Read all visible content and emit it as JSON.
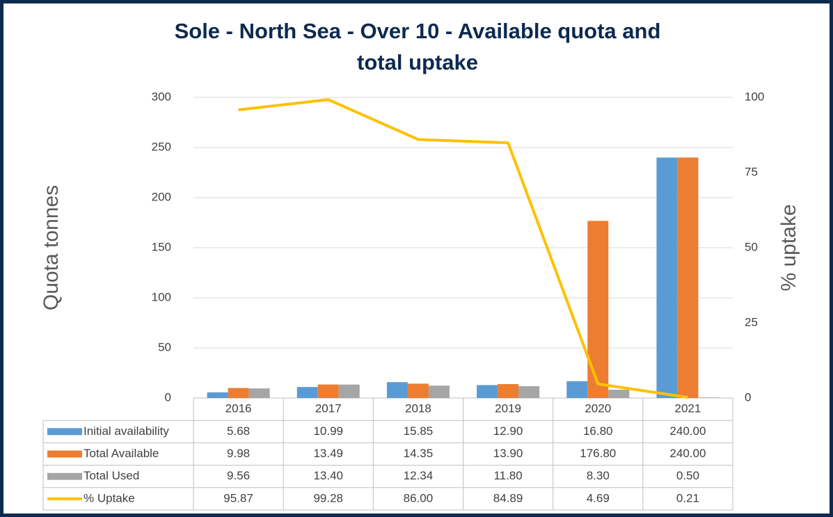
{
  "chart_data": {
    "type": "bar",
    "title": "Sole - North Sea - Over 10 - Available quota and total uptake",
    "title_lines": [
      "Sole - North Sea - Over 10 - Available quota and",
      "total uptake"
    ],
    "y_label": "Quota tonnes",
    "y2_label": "% uptake",
    "categories": [
      "2016",
      "2017",
      "2018",
      "2019",
      "2020",
      "2021"
    ],
    "series": [
      {
        "name": "Initial availability",
        "color": "#5b9bd5",
        "type": "bar",
        "values": [
          5.68,
          10.99,
          15.85,
          12.9,
          16.8,
          240
        ],
        "value_labels": [
          "5.68",
          "10.99",
          "15.85",
          "12.90",
          "16.80",
          "240.00"
        ]
      },
      {
        "name": "Total Available",
        "color": "#ed7d31",
        "type": "bar",
        "values": [
          9.98,
          13.49,
          14.35,
          13.9,
          176.8,
          240
        ],
        "value_labels": [
          "9.98",
          "13.49",
          "14.35",
          "13.90",
          "176.80",
          "240.00"
        ]
      },
      {
        "name": "Total Used",
        "color": "#a5a5a5",
        "type": "bar",
        "values": [
          9.56,
          13.4,
          12.34,
          11.8,
          8.3,
          0.5
        ],
        "value_labels": [
          "9.56",
          "13.40",
          "12.34",
          "11.80",
          "8.30",
          "0.50"
        ]
      },
      {
        "name": "% Uptake",
        "color": "#ffc000",
        "type": "line",
        "axis": "y2",
        "values": [
          95.87,
          99.28,
          86,
          84.89,
          4.69,
          0.21
        ],
        "value_labels": [
          "95.87",
          "99.28",
          "86.00",
          "84.89",
          "4.69",
          "0.21"
        ]
      }
    ],
    "ylim": [
      0,
      300
    ],
    "yticks": [
      0,
      50,
      100,
      150,
      200,
      250,
      300
    ],
    "y2lim": [
      0,
      100
    ],
    "y2ticks": [
      0,
      25,
      50,
      75,
      100
    ],
    "grid": true
  }
}
